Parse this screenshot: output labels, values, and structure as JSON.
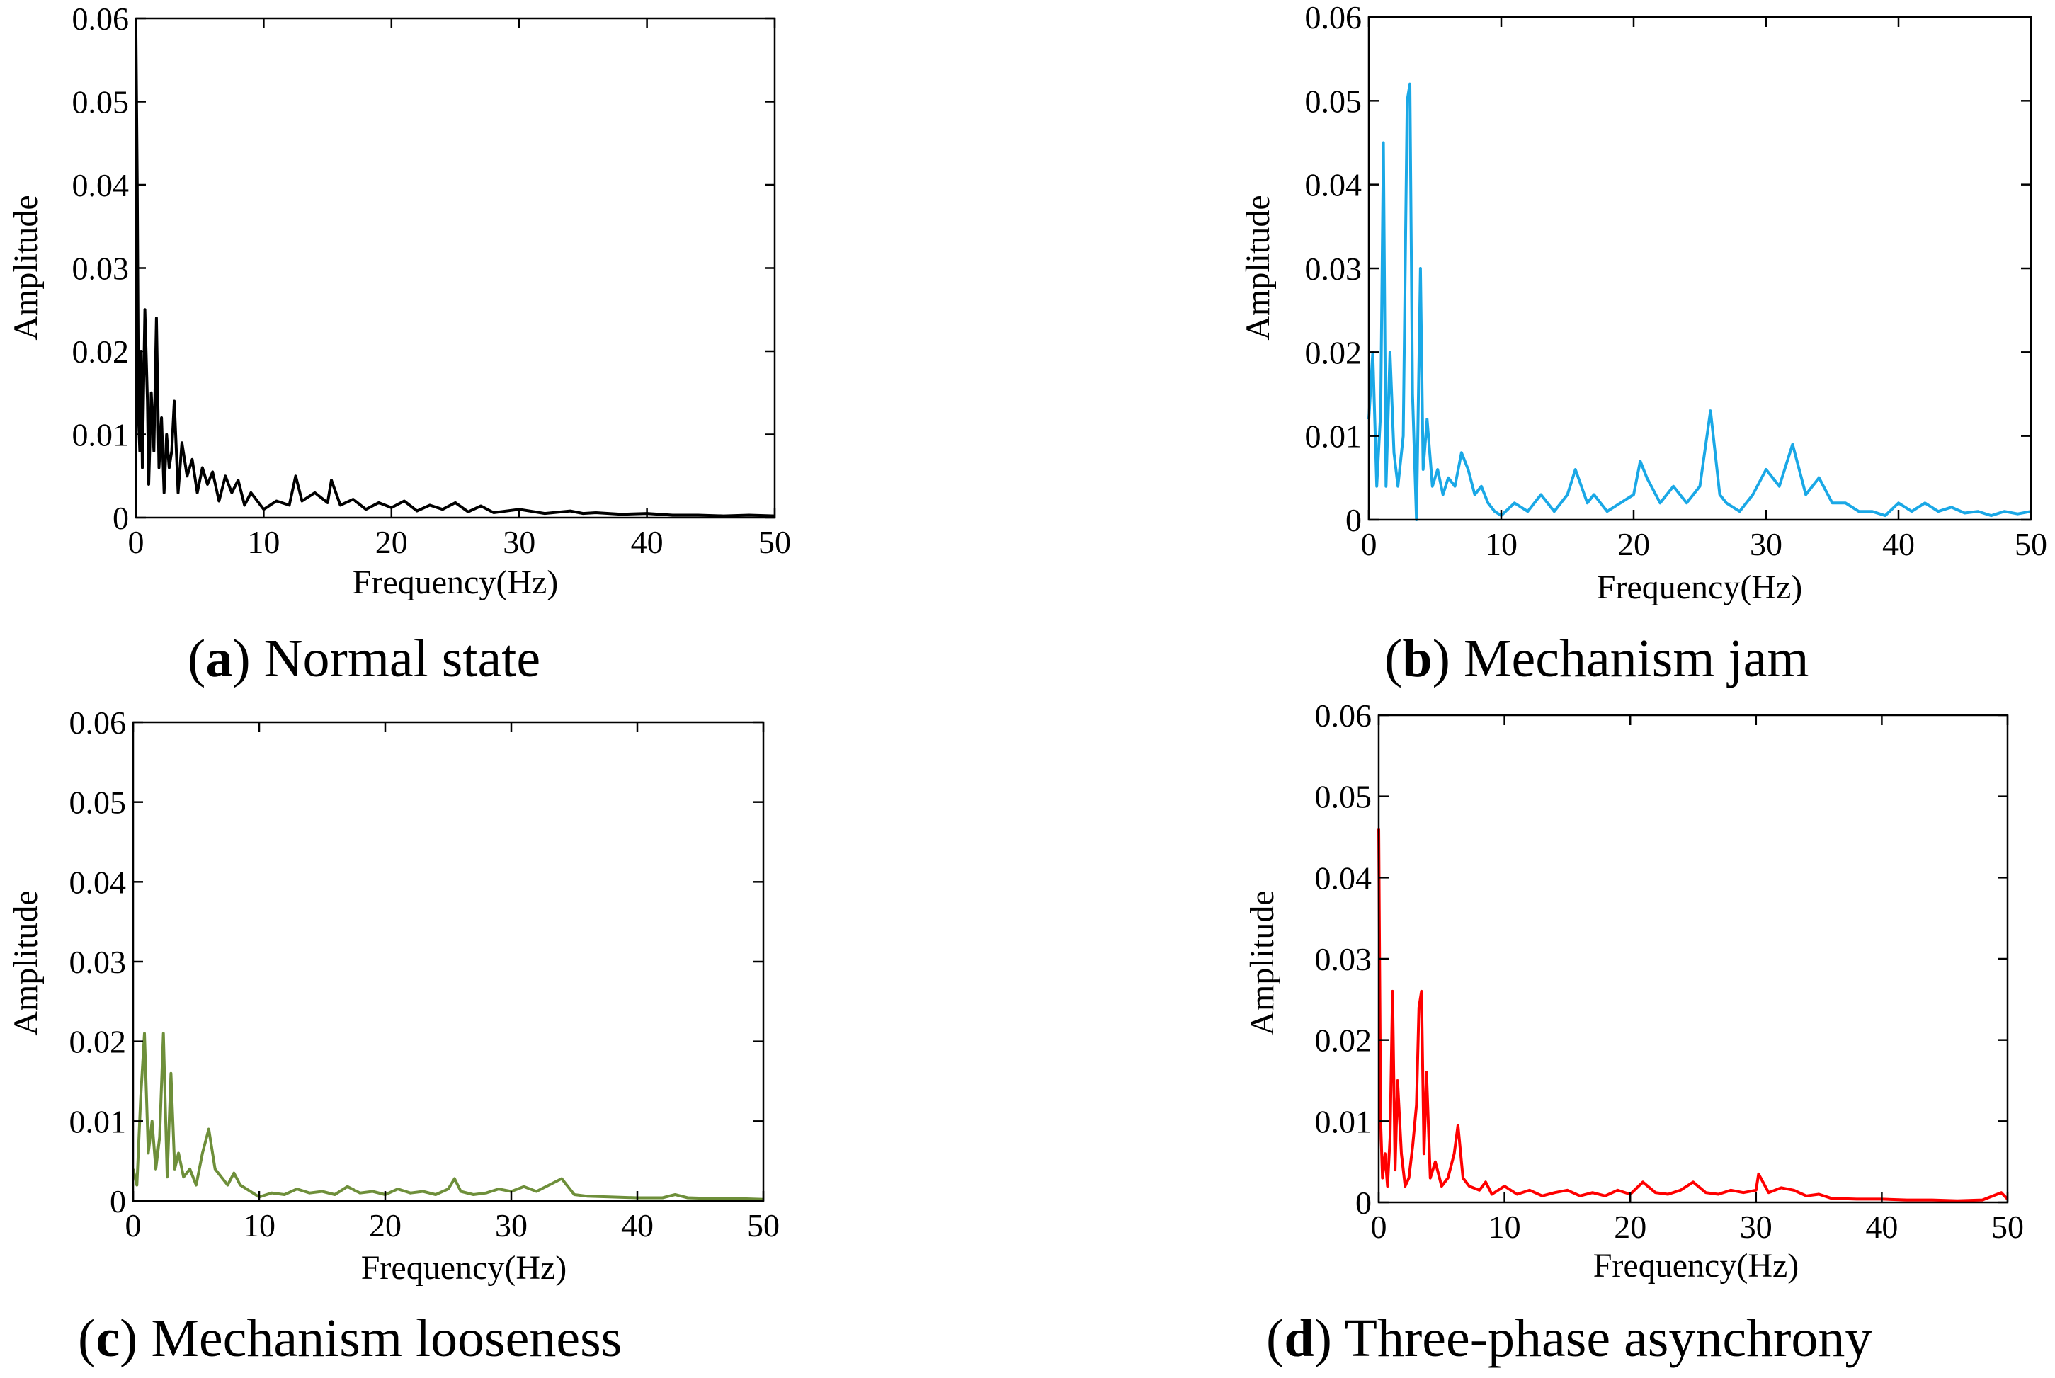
{
  "figure": {
    "panels_count": 4,
    "shared": {
      "xlabel": "Frequency(Hz)",
      "ylabel": "Amplitude"
    }
  },
  "chart_data": [
    {
      "id": "a",
      "type": "line",
      "caption_letter": "a",
      "caption_text": "Normal state",
      "xlabel": "Frequency(Hz)",
      "ylabel": "Amplitude",
      "xlim": [
        0,
        50
      ],
      "ylim": [
        0,
        0.06
      ],
      "xticks": [
        0,
        10,
        20,
        30,
        40,
        50
      ],
      "yticks": [
        0,
        0.01,
        0.02,
        0.03,
        0.04,
        0.05,
        0.06
      ],
      "ytick_labels": [
        "0",
        "0.01",
        "0.02",
        "0.03",
        "0.04",
        "0.05",
        "0.06"
      ],
      "line_color": "#000000",
      "series": [
        {
          "name": "spectrum",
          "x": [
            0,
            0.1,
            0.2,
            0.3,
            0.4,
            0.5,
            0.7,
            0.9,
            1.0,
            1.2,
            1.4,
            1.6,
            1.8,
            2.0,
            2.2,
            2.4,
            2.6,
            2.8,
            3.0,
            3.3,
            3.6,
            4.0,
            4.4,
            4.8,
            5.2,
            5.6,
            6.0,
            6.5,
            7.0,
            7.5,
            8.0,
            8.5,
            9.0,
            10,
            11,
            12,
            12.5,
            13,
            14,
            15,
            15.3,
            16,
            17,
            18,
            19,
            20,
            21,
            22,
            23,
            24,
            25,
            26,
            27,
            28,
            30,
            32,
            34,
            35,
            36,
            38,
            40,
            42,
            44,
            46,
            48,
            50
          ],
          "y": [
            0.058,
            0.04,
            0.012,
            0.008,
            0.02,
            0.006,
            0.025,
            0.014,
            0.004,
            0.015,
            0.008,
            0.024,
            0.006,
            0.012,
            0.003,
            0.01,
            0.006,
            0.008,
            0.014,
            0.003,
            0.009,
            0.005,
            0.007,
            0.003,
            0.006,
            0.004,
            0.0055,
            0.002,
            0.005,
            0.003,
            0.0045,
            0.0015,
            0.003,
            0.001,
            0.002,
            0.0015,
            0.005,
            0.002,
            0.003,
            0.0018,
            0.0045,
            0.0015,
            0.0022,
            0.001,
            0.0018,
            0.0012,
            0.002,
            0.0008,
            0.0015,
            0.001,
            0.0018,
            0.0007,
            0.0014,
            0.0006,
            0.001,
            0.0005,
            0.0008,
            0.0005,
            0.0006,
            0.0004,
            0.0005,
            0.0003,
            0.0003,
            0.0002,
            0.0003,
            0.0002
          ]
        }
      ]
    },
    {
      "id": "b",
      "type": "line",
      "caption_letter": "b",
      "caption_text": "Mechanism jam",
      "xlabel": "Frequency(Hz)",
      "ylabel": "Amplitude",
      "xlim": [
        0,
        50
      ],
      "ylim": [
        0,
        0.06
      ],
      "xticks": [
        0,
        10,
        20,
        30,
        40,
        50
      ],
      "yticks": [
        0,
        0.01,
        0.02,
        0.03,
        0.04,
        0.05,
        0.06
      ],
      "ytick_labels": [
        "0",
        "0.01",
        "0.02",
        "0.03",
        "0.04",
        "0.05",
        "0.06"
      ],
      "line_color": "#1aa8e6",
      "series": [
        {
          "name": "spectrum",
          "x": [
            0,
            0.3,
            0.6,
            0.9,
            1.1,
            1.3,
            1.6,
            1.9,
            2.2,
            2.6,
            2.9,
            3.1,
            3.3,
            3.6,
            3.9,
            4.1,
            4.4,
            4.8,
            5.2,
            5.6,
            6.0,
            6.5,
            7.0,
            7.5,
            8.0,
            8.5,
            9.0,
            9.5,
            10,
            11,
            12,
            13,
            14,
            15,
            15.6,
            16.5,
            17,
            18,
            19,
            20,
            20.5,
            21,
            22,
            23,
            24,
            25,
            25.8,
            26.5,
            27,
            28,
            29,
            30,
            31,
            32,
            33,
            34,
            35,
            36,
            37,
            38,
            39,
            40,
            41,
            42,
            43,
            44,
            45,
            46,
            47,
            48,
            49,
            50
          ],
          "y": [
            0.012,
            0.02,
            0.004,
            0.013,
            0.045,
            0.004,
            0.02,
            0.008,
            0.004,
            0.01,
            0.05,
            0.052,
            0.015,
            0.0,
            0.03,
            0.006,
            0.012,
            0.004,
            0.006,
            0.003,
            0.005,
            0.004,
            0.008,
            0.006,
            0.003,
            0.004,
            0.002,
            0.001,
            0.0005,
            0.002,
            0.001,
            0.003,
            0.001,
            0.003,
            0.006,
            0.002,
            0.003,
            0.001,
            0.002,
            0.003,
            0.007,
            0.005,
            0.002,
            0.004,
            0.002,
            0.004,
            0.013,
            0.003,
            0.002,
            0.001,
            0.003,
            0.006,
            0.004,
            0.009,
            0.003,
            0.005,
            0.002,
            0.002,
            0.001,
            0.001,
            0.0005,
            0.002,
            0.001,
            0.002,
            0.001,
            0.0015,
            0.0008,
            0.001,
            0.0005,
            0.001,
            0.0007,
            0.001
          ]
        }
      ]
    },
    {
      "id": "c",
      "type": "line",
      "caption_letter": "c",
      "caption_text": "Mechanism looseness",
      "xlabel": "Frequency(Hz)",
      "ylabel": "Amplitude",
      "xlim": [
        0,
        50
      ],
      "ylim": [
        0,
        0.06
      ],
      "xticks": [
        0,
        10,
        20,
        30,
        40,
        50
      ],
      "yticks": [
        0,
        0.01,
        0.02,
        0.03,
        0.04,
        0.05,
        0.06
      ],
      "ytick_labels": [
        "0",
        "0.01",
        "0.02",
        "0.03",
        "0.04",
        "0.05",
        "0.06"
      ],
      "line_color": "#6e8f3a",
      "series": [
        {
          "name": "spectrum",
          "x": [
            0,
            0.3,
            0.6,
            0.9,
            1.2,
            1.5,
            1.8,
            2.1,
            2.4,
            2.7,
            3.0,
            3.3,
            3.6,
            4.0,
            4.5,
            5.0,
            5.5,
            6.0,
            6.5,
            7.0,
            7.5,
            8.0,
            8.5,
            9.0,
            9.5,
            10,
            11,
            12,
            13,
            14,
            15,
            16,
            17,
            18,
            19,
            20,
            21,
            22,
            23,
            24,
            25,
            25.5,
            26,
            27,
            28,
            29,
            30,
            31,
            32,
            33,
            34,
            35,
            36,
            38,
            40,
            42,
            43,
            44,
            46,
            48,
            50
          ],
          "y": [
            0.004,
            0.002,
            0.013,
            0.021,
            0.006,
            0.01,
            0.004,
            0.008,
            0.021,
            0.003,
            0.016,
            0.004,
            0.006,
            0.003,
            0.004,
            0.002,
            0.006,
            0.009,
            0.004,
            0.003,
            0.002,
            0.0035,
            0.002,
            0.0015,
            0.001,
            0.0005,
            0.001,
            0.0008,
            0.0015,
            0.001,
            0.0012,
            0.0008,
            0.0018,
            0.001,
            0.0012,
            0.0008,
            0.0015,
            0.001,
            0.0012,
            0.0008,
            0.0015,
            0.0028,
            0.0012,
            0.0008,
            0.001,
            0.0015,
            0.0012,
            0.0018,
            0.0012,
            0.002,
            0.0028,
            0.0008,
            0.0006,
            0.0005,
            0.0004,
            0.0004,
            0.0008,
            0.0004,
            0.0003,
            0.0003,
            0.0002
          ]
        }
      ]
    },
    {
      "id": "d",
      "type": "line",
      "caption_letter": "d",
      "caption_text": "Three-phase asynchrony",
      "xlabel": "Frequency(Hz)",
      "ylabel": "Amplitude",
      "xlim": [
        0,
        50
      ],
      "ylim": [
        0,
        0.06
      ],
      "xticks": [
        0,
        10,
        20,
        30,
        40,
        50
      ],
      "yticks": [
        0,
        0.01,
        0.02,
        0.03,
        0.04,
        0.05,
        0.06
      ],
      "ytick_labels": [
        "0",
        "0.01",
        "0.02",
        "0.03",
        "0.04",
        "0.05",
        "0.06"
      ],
      "line_color": "#ff0000",
      "series": [
        {
          "name": "spectrum",
          "x": [
            0,
            0.15,
            0.3,
            0.5,
            0.7,
            0.9,
            1.1,
            1.3,
            1.5,
            1.8,
            2.1,
            2.4,
            2.7,
            3.0,
            3.2,
            3.4,
            3.6,
            3.8,
            4.1,
            4.5,
            5.0,
            5.5,
            6.0,
            6.3,
            6.7,
            7.2,
            8.0,
            8.5,
            9.0,
            10,
            11,
            12,
            13,
            14,
            15,
            16,
            17,
            18,
            19,
            20,
            21,
            22,
            23,
            24,
            25,
            26,
            27,
            28,
            29,
            30,
            30.2,
            31,
            32,
            33,
            34,
            35,
            36,
            38,
            40,
            42,
            44,
            46,
            48,
            49.5,
            50
          ],
          "y": [
            0.046,
            0.01,
            0.003,
            0.006,
            0.002,
            0.008,
            0.026,
            0.004,
            0.015,
            0.006,
            0.002,
            0.003,
            0.007,
            0.012,
            0.024,
            0.026,
            0.006,
            0.016,
            0.003,
            0.005,
            0.002,
            0.003,
            0.006,
            0.0095,
            0.003,
            0.002,
            0.0015,
            0.0025,
            0.001,
            0.002,
            0.001,
            0.0015,
            0.0008,
            0.0012,
            0.0015,
            0.0008,
            0.0012,
            0.0008,
            0.0015,
            0.001,
            0.0025,
            0.0012,
            0.001,
            0.0015,
            0.0025,
            0.0012,
            0.001,
            0.0015,
            0.0012,
            0.0015,
            0.0035,
            0.0012,
            0.0018,
            0.0015,
            0.0008,
            0.001,
            0.0005,
            0.0004,
            0.0004,
            0.0003,
            0.0003,
            0.0002,
            0.0003,
            0.0012,
            0.0004
          ]
        }
      ]
    }
  ]
}
